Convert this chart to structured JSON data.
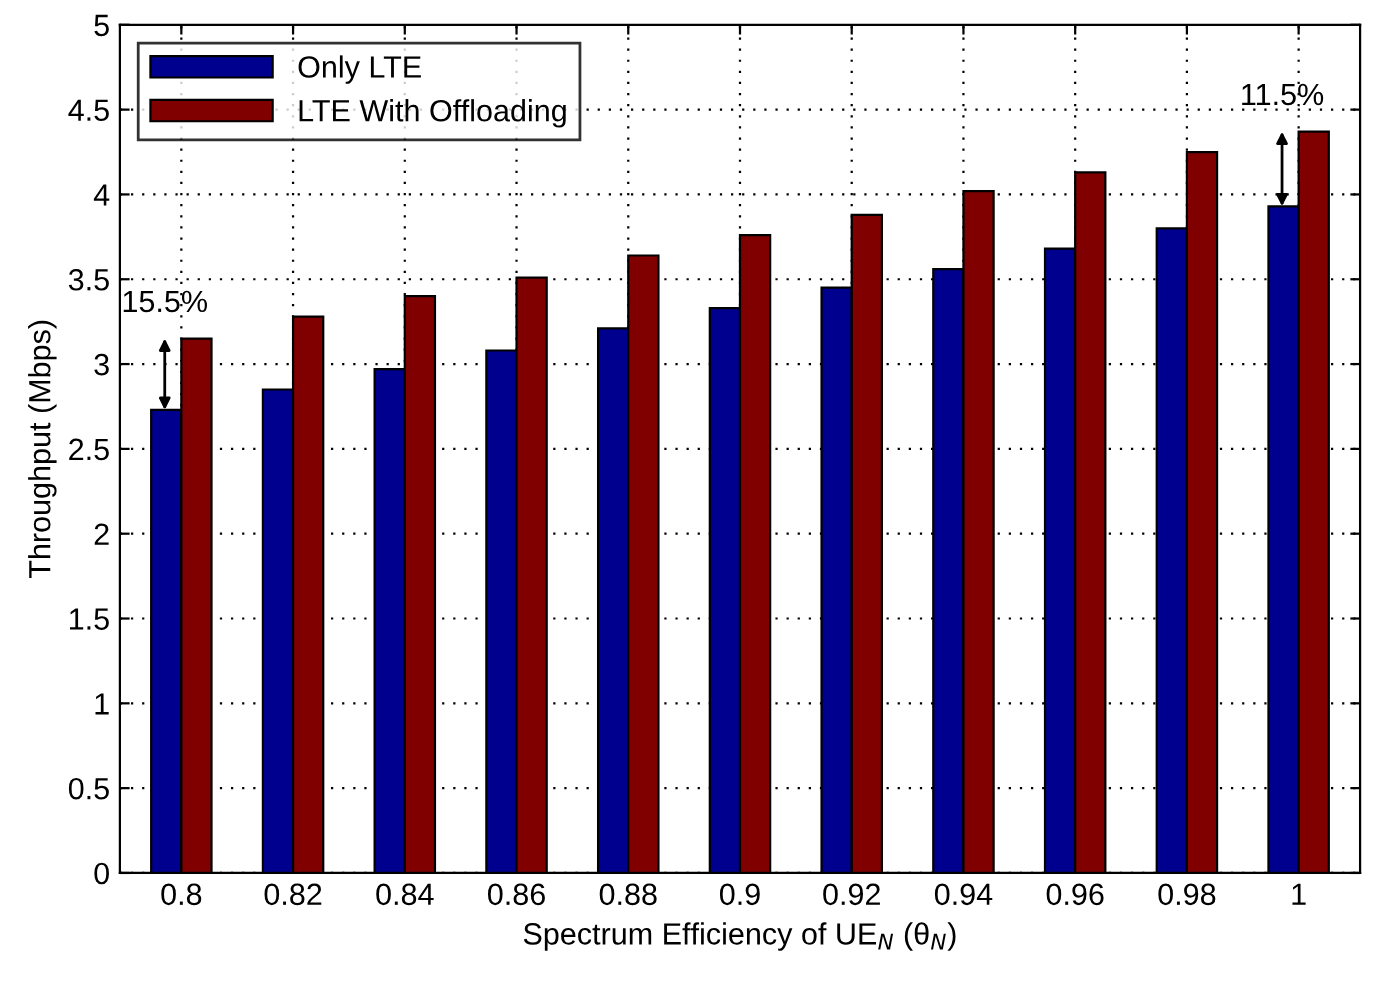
{
  "chart_data": {
    "type": "bar",
    "xlabel": "Spectrum Efficiency of UE$_{N}$ (θ$_{N}$)",
    "ylabel": "Throughput (Mbps)",
    "categories": [
      "0.8",
      "0.82",
      "0.84",
      "0.86",
      "0.88",
      "0.9",
      "0.92",
      "0.94",
      "0.96",
      "0.98",
      "1"
    ],
    "series": [
      {
        "name": "Only LTE",
        "color": "#00008f",
        "values": [
          2.73,
          2.85,
          2.97,
          3.08,
          3.21,
          3.33,
          3.45,
          3.56,
          3.68,
          3.8,
          3.93
        ]
      },
      {
        "name": "LTE With Offloading",
        "color": "#800000",
        "values": [
          3.15,
          3.28,
          3.4,
          3.51,
          3.64,
          3.76,
          3.88,
          4.02,
          4.13,
          4.25,
          4.37
        ]
      }
    ],
    "ylim": [
      0,
      5
    ],
    "yticks": [
      0,
      0.5,
      1,
      1.5,
      2,
      2.5,
      3,
      3.5,
      4,
      4.5,
      5
    ],
    "annotations": [
      {
        "text": "15.5%",
        "x": "0.8",
        "y": 3.15
      },
      {
        "text": "11.5%",
        "x": "1",
        "y": 4.37
      }
    ],
    "grid": true,
    "legend": "top left"
  }
}
